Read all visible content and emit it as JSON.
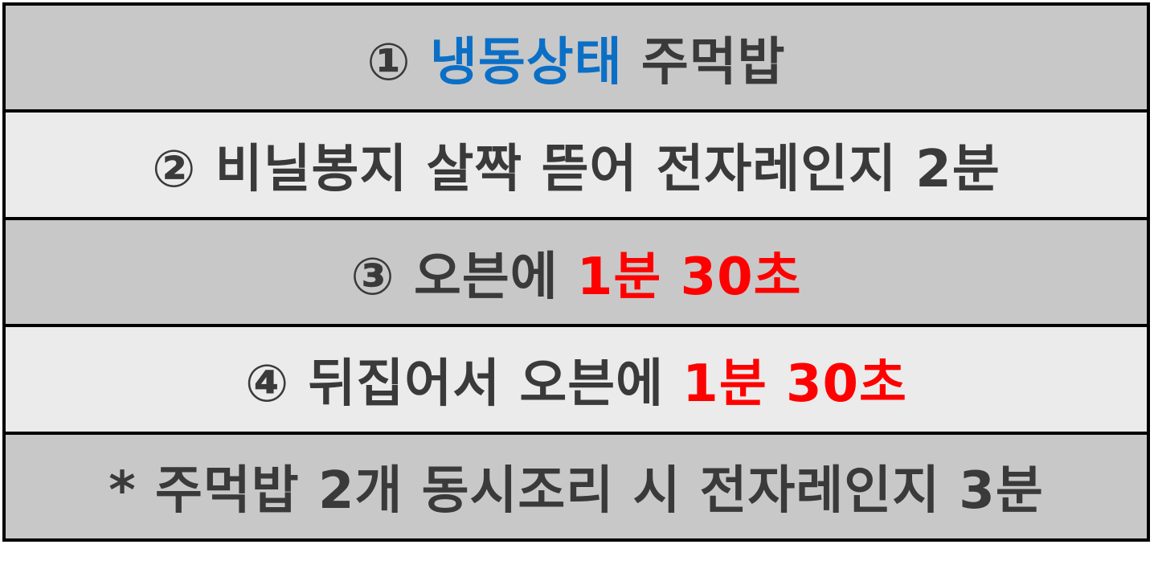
{
  "colors": {
    "dark_row": "#c8c8c8",
    "light_row": "#ebebeb",
    "text": "#3a3a3a",
    "blue": "#0b6fc6",
    "red": "#ff0000",
    "border": "#000000"
  },
  "steps": [
    {
      "before": "① ",
      "highlight": "냉동상태",
      "after": " 주먹밥"
    },
    {
      "before": "② 비닐봉지 살짝 뜯어 전자레인지 2분",
      "highlight": "",
      "after": ""
    },
    {
      "before": "③ 오븐에 ",
      "highlight": "1분 30초",
      "after": ""
    },
    {
      "before": "④ 뒤집어서 오븐에 ",
      "highlight": "1분 30초",
      "after": ""
    },
    {
      "before": "* 주먹밥 2개 동시조리 시 전자레인지 3분",
      "highlight": "",
      "after": ""
    }
  ]
}
